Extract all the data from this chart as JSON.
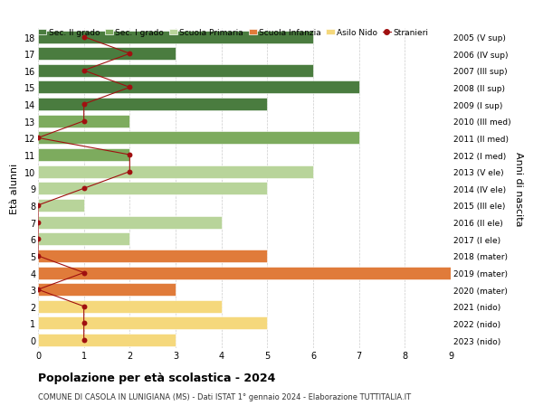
{
  "ages": [
    18,
    17,
    16,
    15,
    14,
    13,
    12,
    11,
    10,
    9,
    8,
    7,
    6,
    5,
    4,
    3,
    2,
    1,
    0
  ],
  "right_labels": [
    "2005 (V sup)",
    "2006 (IV sup)",
    "2007 (III sup)",
    "2008 (II sup)",
    "2009 (I sup)",
    "2010 (III med)",
    "2011 (II med)",
    "2012 (I med)",
    "2013 (V ele)",
    "2014 (IV ele)",
    "2015 (III ele)",
    "2016 (II ele)",
    "2017 (I ele)",
    "2018 (mater)",
    "2019 (mater)",
    "2020 (mater)",
    "2021 (nido)",
    "2022 (nido)",
    "2023 (nido)"
  ],
  "bar_values": [
    6,
    3,
    6,
    7,
    5,
    2,
    7,
    2,
    6,
    5,
    1,
    4,
    2,
    5,
    9,
    3,
    4,
    5,
    3
  ],
  "stranieri_values": [
    1,
    2,
    1,
    2,
    1,
    1,
    0,
    2,
    2,
    1,
    0,
    0,
    0,
    0,
    1,
    0,
    1,
    1,
    1
  ],
  "bar_colors": [
    "#4a7c3f",
    "#4a7c3f",
    "#4a7c3f",
    "#4a7c3f",
    "#4a7c3f",
    "#7dab5e",
    "#7dab5e",
    "#7dab5e",
    "#b8d49a",
    "#b8d49a",
    "#b8d49a",
    "#b8d49a",
    "#b8d49a",
    "#e07b3a",
    "#e07b3a",
    "#e07b3a",
    "#f5d87c",
    "#f5d87c",
    "#f5d87c"
  ],
  "legend_labels": [
    "Sec. II grado",
    "Sec. I grado",
    "Scuola Primaria",
    "Scuola Infanzia",
    "Asilo Nido",
    "Stranieri"
  ],
  "legend_colors": [
    "#4a7c3f",
    "#7dab5e",
    "#b8d49a",
    "#e07b3a",
    "#f5d87c",
    "#a01010"
  ],
  "ylabel": "Età alunni",
  "right_ylabel": "Anni di nascita",
  "title": "Popolazione per età scolastica - 2024",
  "subtitle": "COMUNE DI CASOLA IN LUNIGIANA (MS) - Dati ISTAT 1° gennaio 2024 - Elaborazione TUTTITALIA.IT",
  "xlim": [
    0,
    9
  ],
  "ylim_min": -0.5,
  "ylim_max": 18.5,
  "background_color": "#ffffff",
  "grid_color": "#cccccc",
  "stranieri_color": "#a01010",
  "bar_height": 0.75
}
